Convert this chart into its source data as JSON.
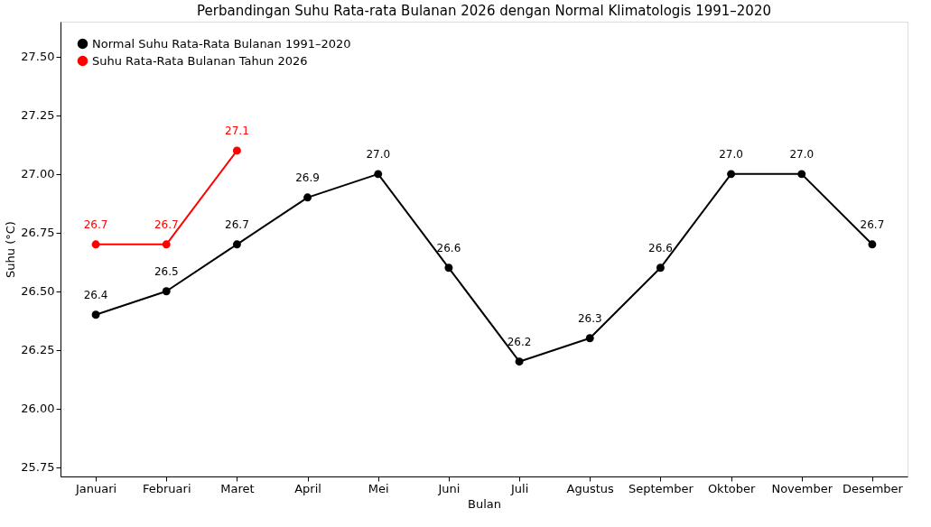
{
  "chart_data": {
    "type": "line",
    "title": "Perbandingan Suhu Rata-rata Bulanan 2026 dengan Normal Klimatologis 1991–2020",
    "xlabel": "Bulan",
    "ylabel": "Suhu (°C)",
    "categories": [
      "Januari",
      "Februari",
      "Maret",
      "April",
      "Mei",
      "Juni",
      "Juli",
      "Agustus",
      "September",
      "Oktober",
      "November",
      "Desember"
    ],
    "series": [
      {
        "name": "Normal Suhu Rata-Rata Bulanan 1991–2020",
        "color": "#000000",
        "values": [
          26.4,
          26.5,
          26.7,
          26.9,
          27,
          26.6,
          26.2,
          26.3,
          26.6,
          27,
          27,
          26.7
        ],
        "value_labels": [
          "26.4",
          "26.5",
          "26.7",
          "26.9",
          "27.0",
          "26.6",
          "26.2",
          "26.3",
          "26.6",
          "27.0",
          "27.0",
          "26.7"
        ]
      },
      {
        "name": "Suhu Rata-Rata Bulanan Tahun 2026",
        "color": "#ff0000",
        "values": [
          26.7,
          26.7,
          27.1,
          null,
          null,
          null,
          null,
          null,
          null,
          null,
          null,
          null
        ],
        "value_labels": [
          "26.7",
          "26.7",
          "27.1",
          null,
          null,
          null,
          null,
          null,
          null,
          null,
          null,
          null
        ]
      }
    ],
    "ylim": [
      25.71,
      27.65
    ],
    "yticks": [
      25.75,
      {
        "value": 26,
        "label": "26.00"
      },
      26.25,
      {
        "value": 26.5,
        "label": "26.50"
      },
      26.75,
      {
        "value": 27,
        "label": "27.00"
      },
      27.25,
      {
        "value": 27.5,
        "label": "27.50"
      }
    ],
    "legend": "top left",
    "marker": "circle",
    "line_style": "solid",
    "grid": false
  }
}
